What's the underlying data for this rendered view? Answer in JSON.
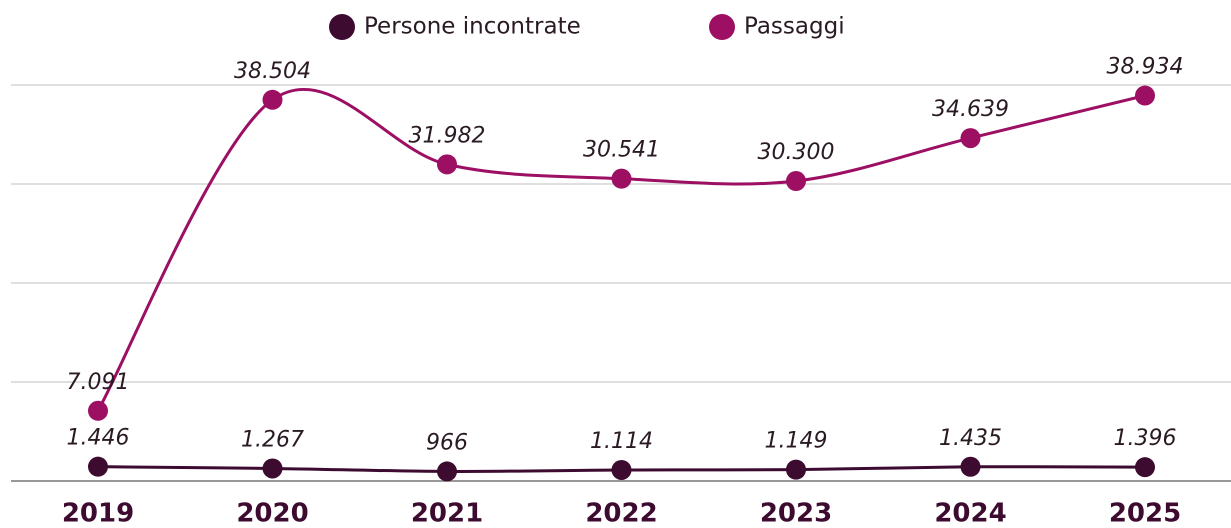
{
  "chart_data": {
    "type": "line",
    "categories": [
      "2019",
      "2020",
      "2021",
      "2022",
      "2023",
      "2024",
      "2025"
    ],
    "series": [
      {
        "name": "Persone incontrate",
        "color": "#3d0b30",
        "values": [
          1446,
          1267,
          966,
          1114,
          1149,
          1435,
          1396
        ],
        "value_labels": [
          "1.446",
          "1.267",
          "966",
          "1.114",
          "1.149",
          "1.435",
          "1.396"
        ]
      },
      {
        "name": "Passaggi",
        "color": "#9c0f63",
        "values": [
          7091,
          38504,
          31982,
          30541,
          30300,
          34639,
          38934
        ],
        "value_labels": [
          "7.091",
          "38.504",
          "31.982",
          "30.541",
          "30.300",
          "34.639",
          "38.934"
        ]
      }
    ],
    "ylim": [
      0,
      40000
    ],
    "yticks": [
      0,
      10000,
      20000,
      30000,
      40000
    ],
    "grid": true,
    "smooth": true,
    "legend": "top"
  }
}
